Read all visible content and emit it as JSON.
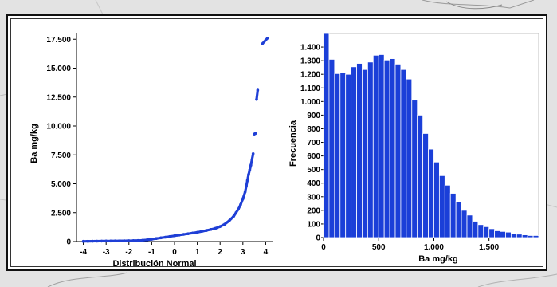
{
  "colors": {
    "marker": "#1f3fd6",
    "bar": "#1b3fd8",
    "bar_edge": "#0a1a8a",
    "plot_border": "#c0c0c0"
  },
  "chart_data": [
    {
      "type": "scatter",
      "title": "",
      "xlabel": "Distribución Normal",
      "ylabel": "Ba mg/kg",
      "xlim": [
        -4.3,
        4.3
      ],
      "ylim": [
        0,
        18000
      ],
      "x_ticks": [
        -4,
        -3,
        -2,
        -1,
        0,
        1,
        2,
        3,
        4
      ],
      "x_tick_labels": [
        "-4",
        "-3",
        "-2",
        "-1",
        "0",
        "1",
        "2",
        "3",
        "4"
      ],
      "y_ticks": [
        0,
        2500,
        5000,
        7500,
        10000,
        12500,
        15000,
        17500
      ],
      "y_tick_labels": [
        "0",
        "2.500",
        "5.000",
        "7.500",
        "10.000",
        "12.500",
        "15.000",
        "17.500"
      ],
      "points": [
        [
          -4.0,
          20
        ],
        [
          -3.8,
          25
        ],
        [
          -3.6,
          30
        ],
        [
          -3.4,
          35
        ],
        [
          -3.2,
          40
        ],
        [
          -3.0,
          45
        ],
        [
          -2.8,
          50
        ],
        [
          -2.6,
          55
        ],
        [
          -2.4,
          60
        ],
        [
          -2.2,
          65
        ],
        [
          -2.0,
          70
        ],
        [
          -1.8,
          80
        ],
        [
          -1.6,
          90
        ],
        [
          -1.4,
          110
        ],
        [
          -1.2,
          150
        ],
        [
          -1.0,
          200
        ],
        [
          -0.8,
          260
        ],
        [
          -0.6,
          320
        ],
        [
          -0.4,
          380
        ],
        [
          -0.2,
          440
        ],
        [
          0.0,
          500
        ],
        [
          0.2,
          560
        ],
        [
          0.4,
          620
        ],
        [
          0.6,
          680
        ],
        [
          0.8,
          740
        ],
        [
          1.0,
          800
        ],
        [
          1.2,
          880
        ],
        [
          1.4,
          960
        ],
        [
          1.6,
          1050
        ],
        [
          1.8,
          1150
        ],
        [
          2.0,
          1300
        ],
        [
          2.2,
          1500
        ],
        [
          2.4,
          1800
        ],
        [
          2.6,
          2200
        ],
        [
          2.7,
          2500
        ],
        [
          2.8,
          2800
        ],
        [
          2.9,
          3200
        ],
        [
          3.0,
          3700
        ],
        [
          3.1,
          4300
        ],
        [
          3.15,
          4800
        ],
        [
          3.2,
          5300
        ],
        [
          3.25,
          5800
        ],
        [
          3.3,
          6200
        ],
        [
          3.35,
          6600
        ],
        [
          3.4,
          7100
        ],
        [
          3.45,
          7600
        ],
        [
          3.5,
          9300
        ],
        [
          3.55,
          9350
        ],
        [
          3.6,
          12300
        ],
        [
          3.65,
          13100
        ],
        [
          3.85,
          17100
        ],
        [
          4.08,
          17600
        ]
      ]
    },
    {
      "type": "bar",
      "title": "",
      "xlabel": "Ba mg/kg",
      "ylabel": "Frecuencia",
      "bin_width": 50,
      "xlim": [
        0,
        1950
      ],
      "ylim": [
        0,
        1500
      ],
      "x_ticks": [
        0,
        500,
        1000,
        1500
      ],
      "x_tick_labels": [
        "0",
        "500",
        "1.000",
        "1.500"
      ],
      "y_ticks": [
        0,
        100,
        200,
        300,
        400,
        500,
        600,
        700,
        800,
        900,
        1000,
        1100,
        1200,
        1300,
        1400
      ],
      "y_tick_labels": [
        "0",
        "100",
        "200",
        "300",
        "400",
        "500",
        "600",
        "700",
        "800",
        "900",
        "1.000",
        "1.100",
        "1.200",
        "1.300",
        "1.400"
      ],
      "values": [
        1500,
        1310,
        1205,
        1215,
        1200,
        1255,
        1280,
        1235,
        1290,
        1340,
        1345,
        1305,
        1315,
        1275,
        1235,
        1165,
        1010,
        900,
        765,
        650,
        555,
        455,
        385,
        325,
        265,
        200,
        165,
        120,
        95,
        80,
        65,
        50,
        45,
        40,
        30,
        25,
        20,
        15,
        15
      ]
    }
  ]
}
